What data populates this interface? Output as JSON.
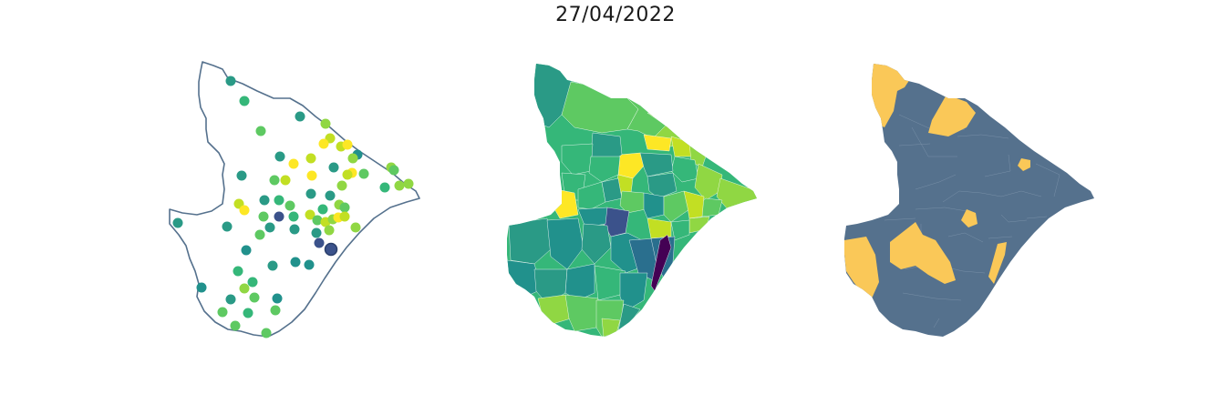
{
  "title": "27/04/2022",
  "colors": {
    "outline": "#55718d",
    "viridis": [
      "#440154",
      "#3b528b",
      "#21918c",
      "#2a9a86",
      "#35b779",
      "#5ec962",
      "#90d743",
      "#c2df23",
      "#fde725"
    ],
    "binary_low": "#fac858",
    "binary_high": "#55718d"
  }
}
